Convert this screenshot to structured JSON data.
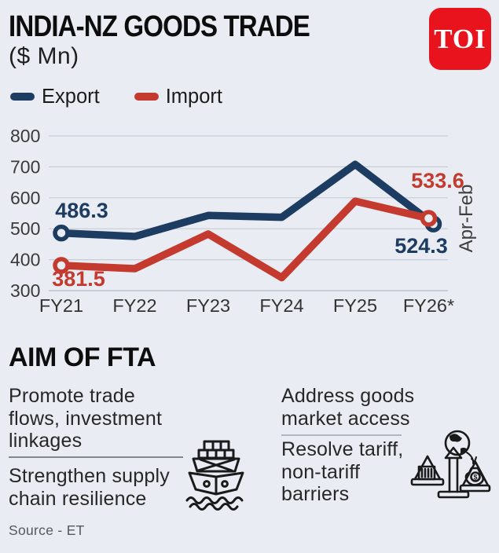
{
  "header": {
    "title": "INDIA-NZ GOODS TRADE",
    "subtitle": "($ Mn)",
    "logo_text": "TOI"
  },
  "legend": [
    {
      "label": "Export",
      "color": "#1d3c61"
    },
    {
      "label": "Import",
      "color": "#c43a2e"
    }
  ],
  "chart_data": {
    "type": "line",
    "title": "INDIA-NZ GOODS TRADE",
    "units": "$ Mn",
    "categories": [
      "FY21",
      "FY22",
      "FY23",
      "FY24",
      "FY25",
      "FY26*"
    ],
    "series": [
      {
        "name": "Export",
        "color": "#1d3c61",
        "values": [
          486.3,
          475,
          543,
          537,
          708,
          524.3
        ]
      },
      {
        "name": "Import",
        "color": "#c43a2e",
        "values": [
          381.5,
          371,
          483,
          342,
          589,
          533.6
        ]
      }
    ],
    "yticks": [
      300,
      400,
      500,
      600,
      700,
      800
    ],
    "ylim": [
      300,
      800
    ],
    "grid": true,
    "legend_position": "top-left",
    "right_axis_label": "Apr-Feb",
    "point_labels": [
      {
        "id": "export-first",
        "series": "Export",
        "category": "FY21",
        "text": "486.3",
        "color": "#1d3c61"
      },
      {
        "id": "import-first",
        "series": "Import",
        "category": "FY21",
        "text": "381.5",
        "color": "#c43a2e"
      },
      {
        "id": "import-last",
        "series": "Import",
        "category": "FY26*",
        "text": "533.6",
        "color": "#c43a2e"
      },
      {
        "id": "export-last",
        "series": "Export",
        "category": "FY26*",
        "text": "524.3",
        "color": "#1d3c61"
      }
    ]
  },
  "fta": {
    "heading": "AIM OF FTA",
    "left_items": [
      "Promote trade\nflows, investment\nlinkages",
      "Strengthen supply\nchain resilience"
    ],
    "right_items": [
      "Address goods\nmarket access",
      "Resolve tariff,\nnon-tariff\nbarriers"
    ]
  },
  "icons": {
    "dollar": "$"
  },
  "source": "Source - ET",
  "colors": {
    "background": "#e9ecf2",
    "export": "#1d3c61",
    "import": "#c43a2e",
    "toi_red": "#e8131d",
    "gridline": "#c8ccd5",
    "axis_text": "#3a3a3a"
  }
}
